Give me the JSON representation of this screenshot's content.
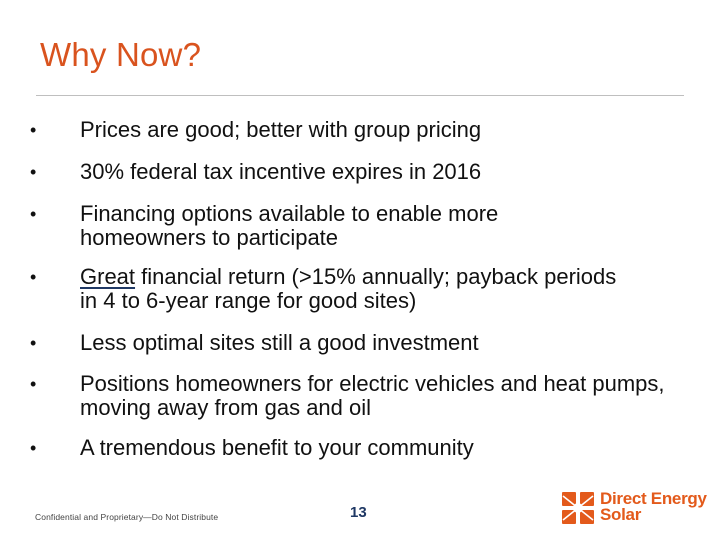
{
  "slide": {
    "title": "Why Now?",
    "bullets": [
      {
        "pre": "Prices are good; better with group pricing",
        "underlined": "",
        "post": ""
      },
      {
        "pre": "30% federal tax incentive expires in 2016",
        "underlined": "",
        "post": ""
      },
      {
        "pre": "Financing options available to enable more homeowners to participate",
        "underlined": "",
        "post": ""
      },
      {
        "pre": "",
        "underlined": "Great",
        "post": " financial return (>15% annually; payback periods in 4 to 6-year range for good sites)"
      },
      {
        "pre": "Less optimal sites still a good investment",
        "underlined": "",
        "post": ""
      },
      {
        "pre": "Positions homeowners for electric vehicles and heat pumps, moving away from gas and oil",
        "underlined": "",
        "post": ""
      },
      {
        "pre": "A tremendous benefit to your community",
        "underlined": "",
        "post": ""
      }
    ],
    "bullet_symbol": "•"
  },
  "footer": {
    "confidential": "Confidential and Proprietary—Do Not Distribute",
    "page_number": "13",
    "logo_line1": "Direct Energy",
    "logo_line2": "Solar",
    "logo_icon": "sunburst-logo-icon",
    "brand_color": "#e35a1b",
    "title_color": "#d9531e"
  }
}
